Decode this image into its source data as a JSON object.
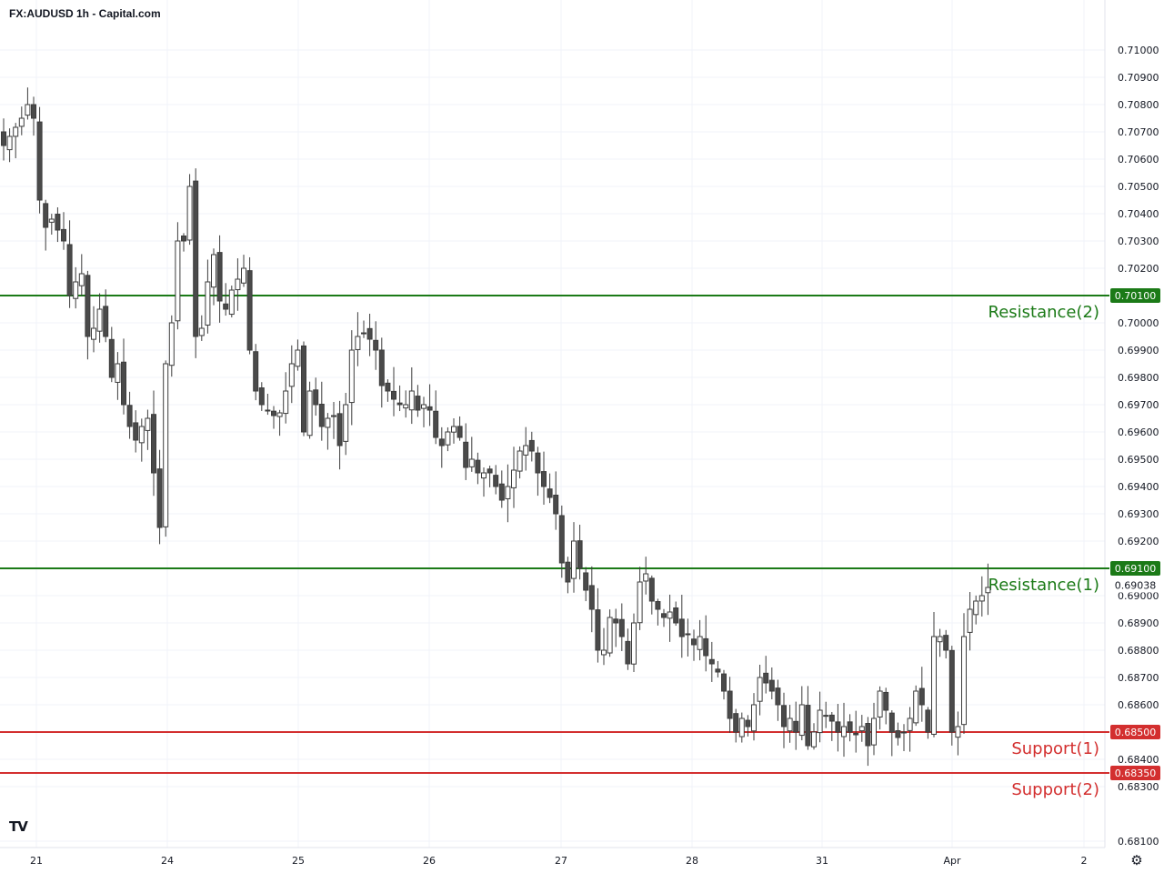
{
  "header": {
    "title": "FX:AUDUSD 1h - Capital.com"
  },
  "footer": {
    "logo_text": "TV",
    "settings_icon": "gear-icon"
  },
  "chart_data": {
    "type": "candlestick",
    "title": "FX:AUDUSD 1h - Capital.com",
    "ylim": [
      0.6806,
      0.7114
    ],
    "y_ticks": [
      "0.71000",
      "0.70900",
      "0.70800",
      "0.70700",
      "0.70600",
      "0.70500",
      "0.70400",
      "0.70300",
      "0.70200",
      "0.70000",
      "0.69900",
      "0.69800",
      "0.69700",
      "0.69600",
      "0.69500",
      "0.69400",
      "0.69300",
      "0.69200",
      "0.69000",
      "0.68900",
      "0.68800",
      "0.68700",
      "0.68600",
      "0.68400",
      "0.68300",
      "0.68100"
    ],
    "x_ticks": [
      "21",
      "24",
      "25",
      "26",
      "27",
      "28",
      "31",
      "Apr",
      "2"
    ],
    "grid": true,
    "levels": [
      {
        "name": "Resistance(2)",
        "value": 0.701,
        "badge": "0.70100",
        "color": "#1b7a17"
      },
      {
        "name": "Resistance(1)",
        "value": 0.691,
        "badge": "0.69100",
        "color": "#1b7a17"
      },
      {
        "name": "Support(1)",
        "value": 0.685,
        "badge": "0.68500",
        "color": "#d32f2f"
      },
      {
        "name": "Support(2)",
        "value": 0.6835,
        "badge": "0.68350",
        "color": "#d32f2f"
      }
    ],
    "last_price": {
      "value": 0.69038,
      "label": "0.69038"
    },
    "colors": {
      "up": "#ffffff",
      "down": "#4a4a4a",
      "wick": "#3c3c3c",
      "grid": "#f0f3fa"
    },
    "anchors": [
      [
        0,
        0.7065
      ],
      [
        3,
        0.7075
      ],
      [
        4,
        0.708
      ],
      [
        5,
        0.7075
      ],
      [
        6,
        0.7045
      ],
      [
        7,
        0.7035
      ],
      [
        8,
        0.7038
      ],
      [
        10,
        0.703
      ],
      [
        11,
        0.701
      ],
      [
        12,
        0.7015
      ],
      [
        13,
        0.7018
      ],
      [
        14,
        0.6995
      ],
      [
        15,
        0.6998
      ],
      [
        16,
        0.7005
      ],
      [
        17,
        0.6995
      ],
      [
        18,
        0.698
      ],
      [
        19,
        0.6985
      ],
      [
        20,
        0.697
      ],
      [
        21,
        0.6962
      ],
      [
        22,
        0.6957
      ],
      [
        23,
        0.6962
      ],
      [
        24,
        0.6965
      ],
      [
        25,
        0.6945
      ],
      [
        26,
        0.6925
      ],
      [
        27,
        0.6985
      ],
      [
        28,
        0.7
      ],
      [
        29,
        0.703
      ],
      [
        30,
        0.703
      ],
      [
        31,
        0.705
      ],
      [
        32,
        0.6995
      ],
      [
        33,
        0.6998
      ],
      [
        34,
        0.7015
      ],
      [
        35,
        0.7025
      ],
      [
        36,
        0.7008
      ],
      [
        37,
        0.7005
      ],
      [
        38,
        0.7012
      ],
      [
        40,
        0.702
      ],
      [
        41,
        0.699
      ],
      [
        42,
        0.6975
      ],
      [
        43,
        0.697
      ],
      [
        44,
        0.6968
      ],
      [
        45,
        0.6966
      ],
      [
        46,
        0.6967
      ],
      [
        47,
        0.6975
      ],
      [
        48,
        0.6985
      ],
      [
        49,
        0.699
      ],
      [
        50,
        0.696
      ],
      [
        51,
        0.6975
      ],
      [
        52,
        0.697
      ],
      [
        53,
        0.6962
      ],
      [
        54,
        0.6965
      ],
      [
        55,
        0.6966
      ],
      [
        56,
        0.6955
      ],
      [
        57,
        0.697
      ],
      [
        58,
        0.699
      ],
      [
        59,
        0.6995
      ],
      [
        60,
        0.6996
      ],
      [
        61,
        0.6994
      ],
      [
        62,
        0.699
      ],
      [
        63,
        0.6977
      ],
      [
        64,
        0.6975
      ],
      [
        65,
        0.6972
      ],
      [
        66,
        0.697
      ],
      [
        67,
        0.697
      ],
      [
        68,
        0.6975
      ],
      [
        69,
        0.6968
      ],
      [
        70,
        0.697
      ],
      [
        71,
        0.6968
      ],
      [
        72,
        0.6958
      ],
      [
        73,
        0.6955
      ],
      [
        74,
        0.696
      ],
      [
        75,
        0.6962
      ],
      [
        76,
        0.6958
      ],
      [
        77,
        0.6947
      ],
      [
        78,
        0.695
      ],
      [
        79,
        0.6945
      ],
      [
        80,
        0.6945
      ],
      [
        81,
        0.6945
      ],
      [
        82,
        0.694
      ],
      [
        83,
        0.6935
      ],
      [
        84,
        0.694
      ],
      [
        85,
        0.6946
      ],
      [
        86,
        0.6953
      ],
      [
        87,
        0.6955
      ],
      [
        88,
        0.6953
      ],
      [
        89,
        0.6945
      ],
      [
        90,
        0.694
      ],
      [
        91,
        0.6936
      ],
      [
        92,
        0.693
      ],
      [
        93,
        0.6912
      ],
      [
        94,
        0.6905
      ],
      [
        95,
        0.692
      ],
      [
        96,
        0.691
      ],
      [
        97,
        0.6902
      ],
      [
        98,
        0.6895
      ],
      [
        99,
        0.688
      ],
      [
        100,
        0.688
      ],
      [
        101,
        0.6892
      ],
      [
        102,
        0.689
      ],
      [
        103,
        0.6885
      ],
      [
        104,
        0.6875
      ],
      [
        105,
        0.689
      ],
      [
        106,
        0.6905
      ],
      [
        107,
        0.6908
      ],
      [
        108,
        0.6898
      ],
      [
        109,
        0.6895
      ],
      [
        110,
        0.6892
      ],
      [
        111,
        0.6894
      ],
      [
        112,
        0.689
      ],
      [
        113,
        0.6885
      ],
      [
        114,
        0.6886
      ],
      [
        115,
        0.6882
      ],
      [
        116,
        0.6885
      ],
      [
        117,
        0.6878
      ],
      [
        118,
        0.6875
      ],
      [
        119,
        0.6872
      ],
      [
        120,
        0.6865
      ],
      [
        121,
        0.6855
      ],
      [
        122,
        0.685
      ],
      [
        123,
        0.6855
      ],
      [
        124,
        0.6852
      ],
      [
        125,
        0.686
      ],
      [
        126,
        0.687
      ],
      [
        127,
        0.6868
      ],
      [
        128,
        0.6865
      ],
      [
        129,
        0.686
      ],
      [
        130,
        0.6852
      ],
      [
        131,
        0.6855
      ],
      [
        132,
        0.685
      ],
      [
        133,
        0.686
      ],
      [
        134,
        0.6845
      ],
      [
        135,
        0.685
      ],
      [
        136,
        0.6858
      ],
      [
        137,
        0.6856
      ],
      [
        138,
        0.6854
      ],
      [
        139,
        0.685
      ],
      [
        140,
        0.6852
      ],
      [
        141,
        0.685
      ],
      [
        142,
        0.6849
      ],
      [
        143,
        0.6852
      ],
      [
        144,
        0.6845
      ],
      [
        145,
        0.6855
      ],
      [
        146,
        0.6865
      ],
      [
        147,
        0.6858
      ],
      [
        148,
        0.685
      ],
      [
        149,
        0.6848
      ],
      [
        150,
        0.685
      ],
      [
        151,
        0.6855
      ],
      [
        152,
        0.6865
      ],
      [
        153,
        0.686
      ],
      [
        154,
        0.685
      ],
      [
        155,
        0.6885
      ],
      [
        156,
        0.6885
      ],
      [
        157,
        0.688
      ],
      [
        158,
        0.685
      ],
      [
        159,
        0.6852
      ],
      [
        160,
        0.6885
      ],
      [
        161,
        0.6895
      ],
      [
        162,
        0.6898
      ],
      [
        163,
        0.69
      ],
      [
        164,
        0.6903
      ]
    ]
  }
}
